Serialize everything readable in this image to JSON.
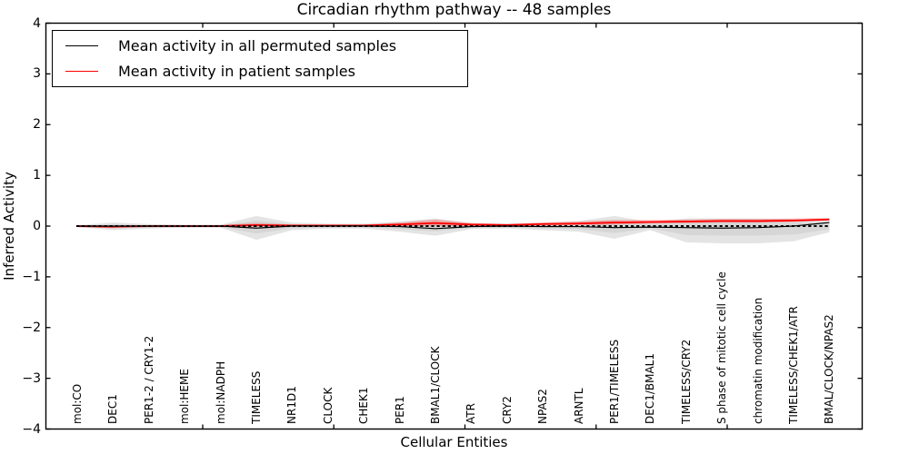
{
  "chart_data": {
    "type": "line",
    "title": "Circadian rhythm pathway -- 48 samples",
    "xlabel": "Cellular Entities",
    "ylabel": "Inferred Activity",
    "ylim": [
      -4,
      4
    ],
    "ytick_labels": [
      "4",
      "3",
      "2",
      "1",
      "0",
      "−1",
      "−2",
      "−3",
      "−4"
    ],
    "grid": false,
    "legend_position": "upper left",
    "zero_reference_line": {
      "style": "dashed",
      "color": "#000000",
      "value": 0
    },
    "categories": [
      "mol:CO",
      "DEC1",
      "PER1-2 / CRY1-2",
      "mol:HEME",
      "mol:NADPH",
      "TIMELESS",
      "NR1D1",
      "CLOCK",
      "CHEK1",
      "PER1",
      "BMAL1/CLOCK",
      "ATR",
      "CRY2",
      "NPAS2",
      "ARNTL",
      "PER1/TIMELESS",
      "DEC1/BMAL1",
      "TIMELESS/CRY2",
      "S phase of mitotic cell cycle",
      "chromatin modification",
      "TIMELESS/CHEK1/ATR",
      "BMAL/CLOCK/NPAS2"
    ],
    "series": [
      {
        "name": "Mean activity in all permuted samples",
        "color": "#000000",
        "values": [
          0,
          0,
          0,
          0,
          0,
          -0.04,
          0,
          0,
          0,
          -0.01,
          -0.05,
          -0.01,
          0,
          -0.01,
          -0.01,
          -0.03,
          -0.02,
          -0.03,
          -0.04,
          -0.03,
          0,
          0.07
        ]
      },
      {
        "name": "Mean activity in patient samples",
        "color": "#ff0000",
        "values": [
          0,
          -0.01,
          0,
          0,
          0,
          0.02,
          0.01,
          0.01,
          0.01,
          0.03,
          0.06,
          0.03,
          0.02,
          0.04,
          0.05,
          0.07,
          0.08,
          0.09,
          0.1,
          0.1,
          0.11,
          0.13
        ]
      }
    ],
    "bands": {
      "permuted_range": {
        "color": "#dcdcdc",
        "upper": [
          0.02,
          0.07,
          0.04,
          0.03,
          0.03,
          0.2,
          0.07,
          0.05,
          0.05,
          0.09,
          0.15,
          0.06,
          0.05,
          0.07,
          0.1,
          0.2,
          0.08,
          0.15,
          0.15,
          0.15,
          0.14,
          0.1
        ],
        "lower": [
          -0.02,
          -0.08,
          -0.05,
          -0.03,
          -0.03,
          -0.27,
          -0.08,
          -0.05,
          -0.05,
          -0.11,
          -0.19,
          -0.06,
          -0.05,
          -0.08,
          -0.11,
          -0.25,
          -0.08,
          -0.32,
          -0.34,
          -0.34,
          -0.3,
          -0.12
        ]
      },
      "patient_range": {
        "color": "#ff8888",
        "upper": [
          0.02,
          0.01,
          0.02,
          0.02,
          0.02,
          0.06,
          0.03,
          0.03,
          0.03,
          0.07,
          0.13,
          0.06,
          0.04,
          0.07,
          0.09,
          0.12,
          0.12,
          0.13,
          0.14,
          0.14,
          0.15,
          0.16
        ],
        "lower": [
          -0.02,
          -0.04,
          -0.02,
          -0.02,
          -0.02,
          -0.01,
          -0.01,
          -0.01,
          -0.01,
          -0.01,
          0.0,
          0.0,
          0.0,
          0.01,
          0.02,
          0.03,
          0.05,
          0.06,
          0.07,
          0.07,
          0.08,
          0.11
        ]
      }
    }
  }
}
